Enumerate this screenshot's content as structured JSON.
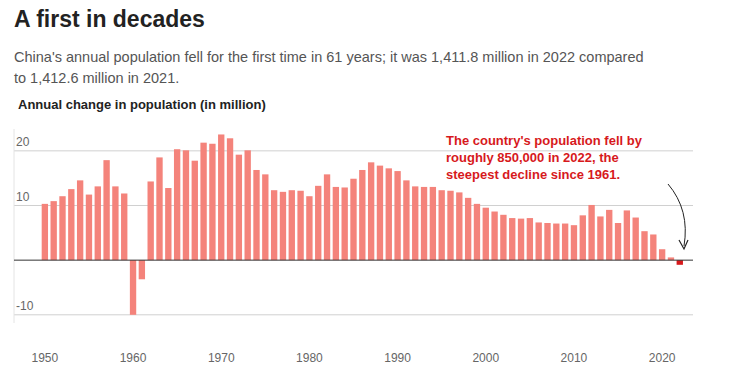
{
  "chart_data": {
    "type": "bar",
    "title": "A first in decades",
    "subtitle": [
      "China's annual population fell for the first time in 61 years; it was 1,411.8 million in 2022 compared",
      "to 1,412.6 million in 2021."
    ],
    "y_label": "Annual change in population (in million)",
    "annotation": [
      "The country's population fell by",
      "roughly 850,000 in 2022, the",
      "steepest decline since 1961."
    ],
    "x": [
      1950,
      1951,
      1952,
      1953,
      1954,
      1955,
      1956,
      1957,
      1958,
      1959,
      1960,
      1961,
      1962,
      1963,
      1964,
      1965,
      1966,
      1967,
      1968,
      1969,
      1970,
      1971,
      1972,
      1973,
      1974,
      1975,
      1976,
      1977,
      1978,
      1979,
      1980,
      1981,
      1982,
      1983,
      1984,
      1985,
      1986,
      1987,
      1988,
      1989,
      1990,
      1991,
      1992,
      1993,
      1994,
      1995,
      1996,
      1997,
      1998,
      1999,
      2000,
      2001,
      2002,
      2003,
      2004,
      2005,
      2006,
      2007,
      2008,
      2009,
      2010,
      2011,
      2012,
      2013,
      2014,
      2015,
      2016,
      2017,
      2018,
      2019,
      2020,
      2021,
      2022
    ],
    "values": [
      10.3,
      10.8,
      11.7,
      13.0,
      14.6,
      12.0,
      13.5,
      18.3,
      13.5,
      12.2,
      -10.0,
      -3.5,
      14.4,
      18.8,
      13.2,
      20.3,
      20.1,
      18.2,
      21.5,
      21.3,
      23.0,
      22.3,
      19.3,
      20.1,
      16.5,
      15.7,
      12.8,
      12.5,
      12.8,
      12.7,
      11.7,
      13.6,
      15.7,
      13.4,
      13.3,
      14.9,
      16.5,
      17.9,
      17.3,
      16.8,
      16.3,
      14.6,
      13.5,
      13.4,
      13.4,
      12.8,
      12.7,
      12.4,
      11.4,
      10.3,
      9.6,
      8.9,
      8.3,
      7.7,
      7.6,
      7.7,
      6.9,
      6.8,
      6.7,
      6.7,
      6.4,
      8.2,
      10.1,
      8.0,
      9.2,
      6.8,
      9.1,
      7.8,
      5.3,
      4.7,
      2.0,
      0.5,
      -0.85
    ],
    "colors": [
      "#f4837b",
      "#f4837b",
      "#f4837b",
      "#f4837b",
      "#f4837b",
      "#f4837b",
      "#f4837b",
      "#f4837b",
      "#f4837b",
      "#f4837b",
      "#f4837b",
      "#f4837b",
      "#f4837b",
      "#f4837b",
      "#f4837b",
      "#f4837b",
      "#f4837b",
      "#f4837b",
      "#f4837b",
      "#f4837b",
      "#f4837b",
      "#f4837b",
      "#f4837b",
      "#f4837b",
      "#f4837b",
      "#f4837b",
      "#f4837b",
      "#f4837b",
      "#f4837b",
      "#f4837b",
      "#f4837b",
      "#f4837b",
      "#f4837b",
      "#f4837b",
      "#f4837b",
      "#f4837b",
      "#f4837b",
      "#f4837b",
      "#f4837b",
      "#f4837b",
      "#f4837b",
      "#f4837b",
      "#f4837b",
      "#f4837b",
      "#f4837b",
      "#f4837b",
      "#f4837b",
      "#f4837b",
      "#f4837b",
      "#f4837b",
      "#f4837b",
      "#f4837b",
      "#f4837b",
      "#f4837b",
      "#f4837b",
      "#f4837b",
      "#f4837b",
      "#f4837b",
      "#f4837b",
      "#f4837b",
      "#f4837b",
      "#f4837b",
      "#f4837b",
      "#f4837b",
      "#f4837b",
      "#f4837b",
      "#f4837b",
      "#f4837b",
      "#f4837b",
      "#f4837b",
      "#f4837b",
      "#f4837b",
      "#d7191c"
    ],
    "xlim": [
      1946.5,
      2023.5
    ],
    "xticks": [
      1950,
      1960,
      1970,
      1980,
      1990,
      2000,
      2010,
      2020
    ],
    "ylim": [
      -11.5,
      24
    ],
    "yticks": [
      -10,
      10,
      20
    ],
    "grid": true
  }
}
